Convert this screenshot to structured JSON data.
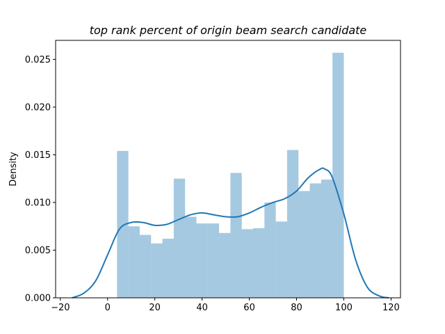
{
  "chart_data": {
    "type": "bar",
    "title": "top rank percent of origin beam search candidate",
    "xlabel": "",
    "ylabel": "Density",
    "xlim": [
      -22,
      124
    ],
    "ylim": [
      0,
      0.027
    ],
    "xticks": [
      -20,
      0,
      20,
      40,
      60,
      80,
      100,
      120
    ],
    "xtick_labels": [
      "−20",
      "0",
      "20",
      "40",
      "60",
      "80",
      "100",
      "120"
    ],
    "yticks": [
      0.0,
      0.005,
      0.01,
      0.015,
      0.02,
      0.025
    ],
    "ytick_labels": [
      "0.000",
      "0.005",
      "0.010",
      "0.015",
      "0.020",
      "0.025"
    ],
    "grid": false,
    "histogram": {
      "bin_edges": [
        4.0,
        8.8,
        13.6,
        18.4,
        23.2,
        28.0,
        32.8,
        37.6,
        42.4,
        47.2,
        52.0,
        56.8,
        61.6,
        66.4,
        71.2,
        76.0,
        80.8,
        85.6,
        90.4,
        95.2,
        100.0
      ],
      "densities": [
        0.0154,
        0.0075,
        0.0066,
        0.0057,
        0.0062,
        0.0125,
        0.0085,
        0.0078,
        0.0078,
        0.0068,
        0.0131,
        0.0072,
        0.0073,
        0.01,
        0.008,
        0.0155,
        0.0112,
        0.012,
        0.0124,
        0.0257
      ]
    },
    "kde": {
      "x": [
        -15,
        -10,
        -5,
        0,
        5,
        10,
        15,
        20,
        25,
        30,
        35,
        40,
        45,
        50,
        55,
        60,
        65,
        70,
        75,
        80,
        85,
        90,
        92,
        95,
        100,
        105,
        110,
        115,
        119
      ],
      "y": [
        0.0,
        0.0005,
        0.0018,
        0.0045,
        0.0072,
        0.0079,
        0.0079,
        0.0076,
        0.0077,
        0.0082,
        0.0087,
        0.0089,
        0.0087,
        0.0085,
        0.0085,
        0.0089,
        0.0095,
        0.01,
        0.0104,
        0.0112,
        0.0126,
        0.0135,
        0.0135,
        0.0127,
        0.0088,
        0.004,
        0.0011,
        0.0002,
        0.0
      ]
    }
  }
}
